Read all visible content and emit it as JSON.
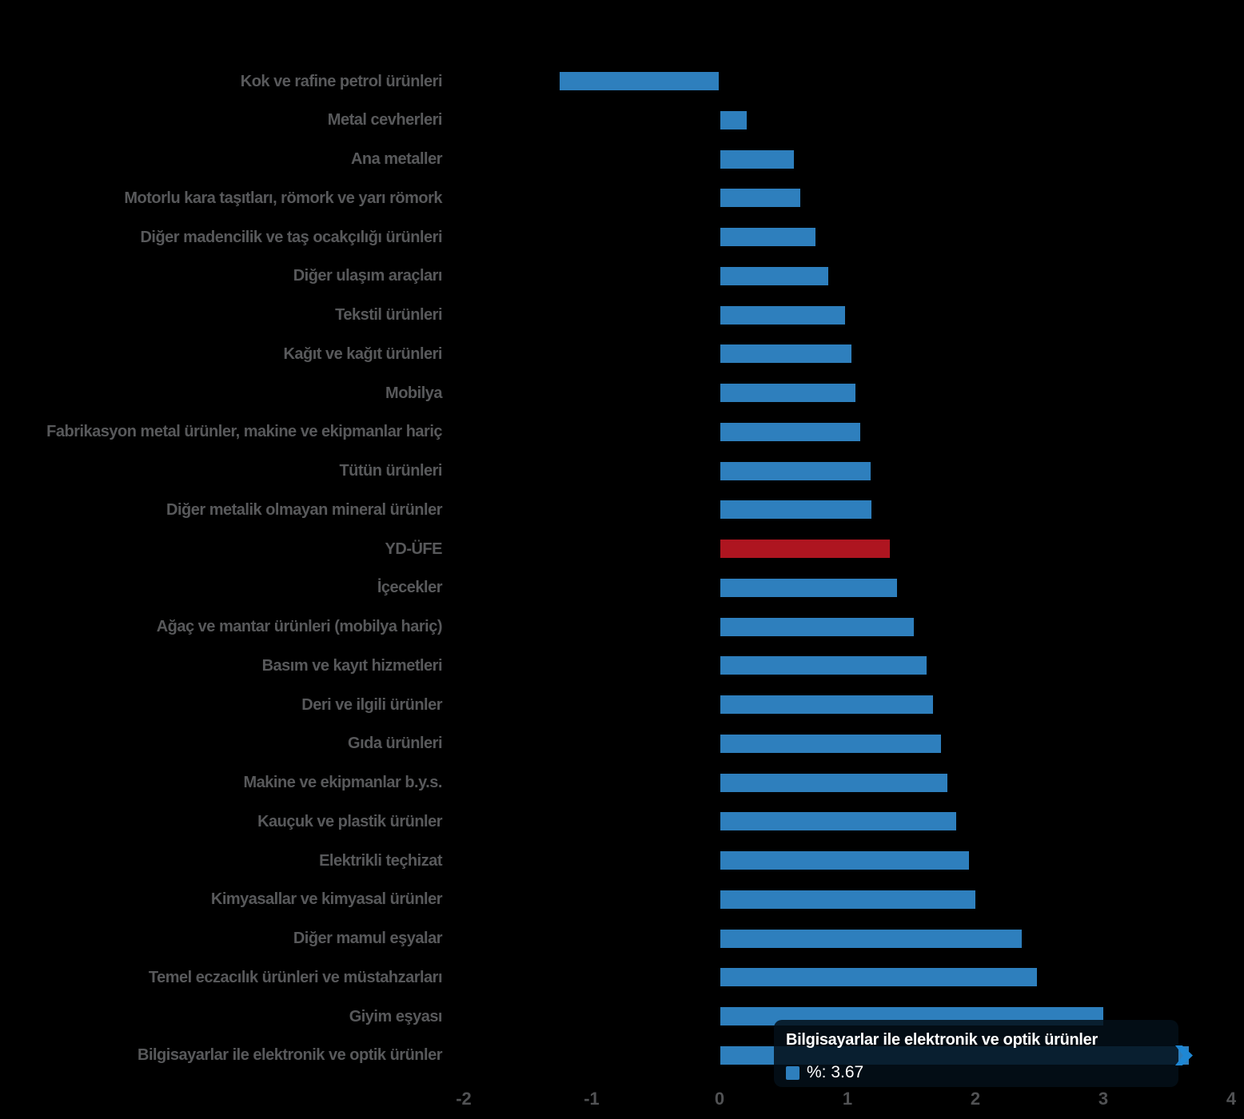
{
  "chart_data": {
    "type": "bar",
    "orientation": "horizontal",
    "title": "",
    "xlabel": "",
    "ylabel": "",
    "xlim": [
      -2,
      4
    ],
    "x_ticks": [
      "-2",
      "-1",
      "0",
      "1",
      "2",
      "3",
      "4"
    ],
    "grid": false,
    "background_color": "#000000",
    "bar_color": "#2E7FBD",
    "highlight_color": "#AE1520",
    "highlight_category": "YD-ÜFE",
    "categories": [
      "Kok ve rafine petrol ürünleri",
      "Metal cevherleri",
      "Ana metaller",
      "Motorlu kara taşıtları, römork ve yarı römork",
      "Diğer madencilik ve taş ocakçılığı ürünleri",
      "Diğer ulaşım araçları",
      "Tekstil ürünleri",
      "Kağıt ve kağıt ürünleri",
      "Mobilya",
      "Fabrikasyon metal ürünler, makine ve ekipmanlar hariç",
      "Tütün ürünleri",
      "Diğer metalik olmayan mineral ürünler",
      "YD-ÜFE",
      "İçecekler",
      "Ağaç ve mantar ürünleri (mobilya hariç)",
      "Basım ve kayıt hizmetleri",
      "Deri ve ilgili ürünler",
      "Gıda ürünleri",
      "Makine ve ekipmanlar b.y.s.",
      "Kauçuk ve plastik ürünler",
      "Elektrikli teçhizat",
      "Kimyasallar ve kimyasal ürünler",
      "Diğer mamul eşyalar",
      "Temel eczacılık ürünleri ve müstahzarları",
      "Giyim eşyası",
      "Bilgisayarlar ile elektronik ve optik ürünler"
    ],
    "values": [
      -1.25,
      0.21,
      0.58,
      0.63,
      0.75,
      0.85,
      0.98,
      1.03,
      1.06,
      1.1,
      1.18,
      1.19,
      1.33,
      1.39,
      1.52,
      1.62,
      1.67,
      1.73,
      1.78,
      1.85,
      1.95,
      2.0,
      2.36,
      2.48,
      3.0,
      3.67
    ]
  },
  "tooltip": {
    "title": "Bilgisayarlar ile elektronik ve optik ürünler",
    "value_label": "%: 3.67",
    "value": 3.67,
    "marker_color": "#2E7FBD",
    "arrow_color": "#1E87D4"
  }
}
